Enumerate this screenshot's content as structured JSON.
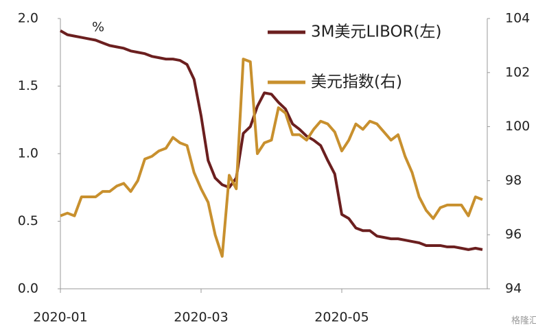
{
  "chart_data": {
    "type": "line",
    "categories": [
      "2020-01",
      null,
      null,
      null,
      null,
      null,
      null,
      null,
      null,
      null,
      null,
      null,
      null,
      null,
      null,
      null,
      null,
      null,
      null,
      null,
      "2020-03",
      null,
      null,
      null,
      null,
      null,
      null,
      null,
      null,
      null,
      null,
      null,
      null,
      null,
      null,
      null,
      null,
      null,
      null,
      null,
      "2020-05",
      null,
      null,
      null,
      null,
      null,
      null,
      null,
      null,
      null,
      null,
      null,
      null,
      null,
      null,
      null,
      null,
      null,
      null,
      null,
      null
    ],
    "series": [
      {
        "name": "3M美元LIBOR(左)",
        "color": "#6b1f1f",
        "axis": "y",
        "values": [
          1.91,
          1.88,
          1.87,
          1.86,
          1.85,
          1.84,
          1.82,
          1.8,
          1.79,
          1.78,
          1.76,
          1.75,
          1.74,
          1.72,
          1.71,
          1.7,
          1.7,
          1.69,
          1.66,
          1.55,
          1.28,
          0.95,
          0.82,
          0.77,
          0.75,
          0.82,
          1.15,
          1.2,
          1.35,
          1.45,
          1.44,
          1.38,
          1.33,
          1.22,
          1.18,
          1.13,
          1.1,
          1.06,
          0.95,
          0.85,
          0.55,
          0.52,
          0.45,
          0.43,
          0.43,
          0.39,
          0.38,
          0.37,
          0.37,
          0.36,
          0.35,
          0.34,
          0.32,
          0.32,
          0.32,
          0.31,
          0.31,
          0.3,
          0.29,
          0.3,
          0.29
        ]
      },
      {
        "name": "美元指数(右)",
        "color": "#c8902e",
        "axis": "y2",
        "values": [
          96.7,
          96.8,
          96.7,
          97.4,
          97.4,
          97.4,
          97.6,
          97.6,
          97.8,
          97.9,
          97.6,
          98.0,
          98.8,
          98.9,
          99.1,
          99.2,
          99.6,
          99.4,
          99.3,
          98.3,
          97.7,
          97.2,
          96.0,
          95.2,
          98.2,
          97.7,
          102.5,
          102.4,
          99.0,
          99.4,
          99.5,
          100.7,
          100.5,
          99.7,
          99.7,
          99.5,
          99.9,
          100.2,
          100.1,
          99.8,
          99.1,
          99.5,
          100.1,
          99.9,
          100.2,
          100.1,
          99.8,
          99.5,
          99.7,
          98.9,
          98.3,
          97.4,
          96.9,
          96.6,
          97.0,
          97.1,
          97.1,
          97.1,
          96.7,
          97.4,
          97.3
        ]
      }
    ],
    "ylim": [
      0,
      2
    ],
    "yticks": [
      {
        "value": 0,
        "label": "0.0"
      },
      0.5,
      {
        "value": 1,
        "label": "1.0"
      },
      1.5,
      {
        "value": 2,
        "label": "2.0"
      }
    ],
    "y2lim": [
      94,
      104
    ],
    "y2ticks": [
      94,
      96,
      98,
      100,
      102,
      104
    ],
    "y_unit_annotation": "%",
    "watermark": "格隆汇",
    "grid": false,
    "legend": "upper right"
  }
}
